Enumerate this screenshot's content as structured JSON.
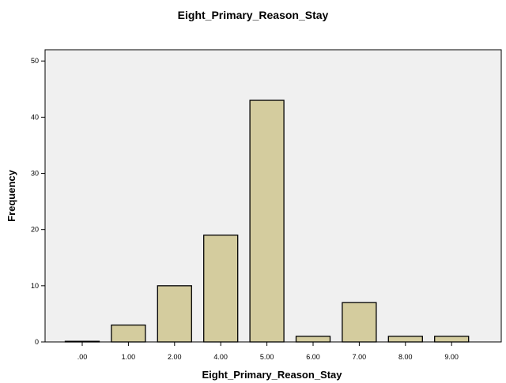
{
  "chart_data": {
    "type": "bar",
    "title": "Eight_Primary_Reason_Stay",
    "xlabel": "Eight_Primary_Reason_Stay",
    "ylabel": "Frequency",
    "categories": [
      ".00",
      "1.00",
      "2.00",
      "4.00",
      "5.00",
      "6.00",
      "7.00",
      "8.00",
      "9.00"
    ],
    "values": [
      0,
      3,
      10,
      19,
      43,
      1,
      7,
      1,
      1
    ],
    "ylim": [
      0,
      52
    ],
    "yticks": [
      "0",
      "10",
      "20",
      "30",
      "40",
      "50"
    ],
    "grid": false,
    "colors": {
      "plot_background": "#f0f0f0",
      "bar_fill": "#d4cc9e",
      "bar_stroke": "#000000",
      "axis": "#000000"
    }
  }
}
